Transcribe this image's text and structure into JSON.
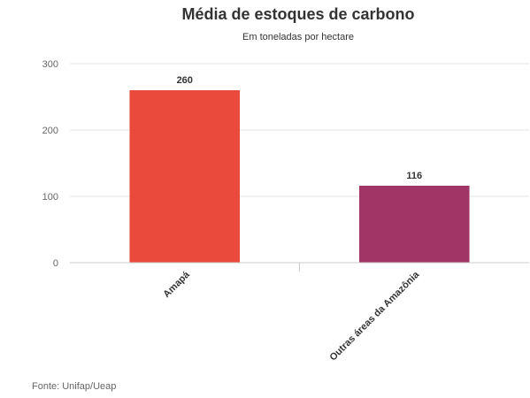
{
  "chart_data": {
    "type": "bar",
    "title": "Média de estoques de carbono",
    "subtitle": "Em toneladas por hectare",
    "categories": [
      "Amapá",
      "Outras áreas da Amazônia"
    ],
    "values": [
      260,
      116
    ],
    "data_labels": [
      "260",
      "116"
    ],
    "colors": [
      "#ea4a3c",
      "#a03566"
    ],
    "ylim": [
      0,
      300
    ],
    "yticks": [
      0,
      100,
      200,
      300
    ],
    "grid": true,
    "legend": "none"
  },
  "source": "Fonte: Unifap/Ueap"
}
